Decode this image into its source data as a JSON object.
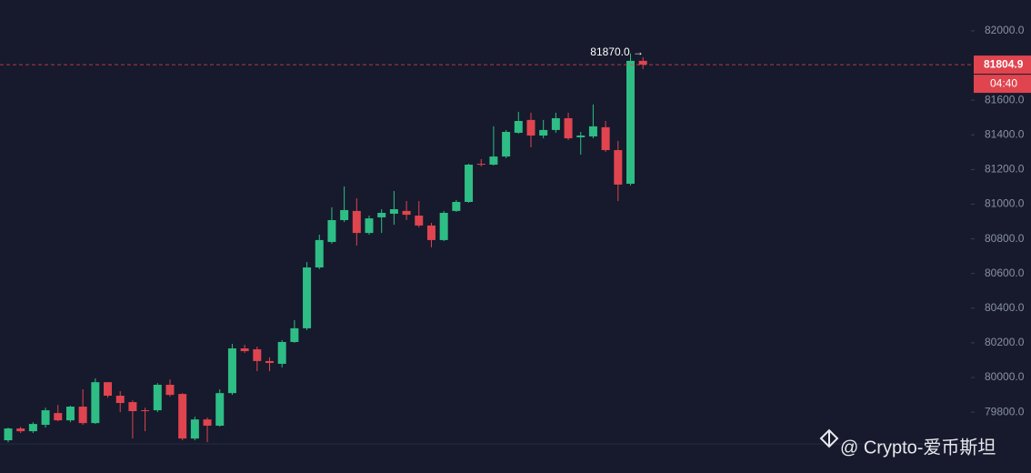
{
  "chart_data": {
    "type": "candlestick",
    "open": [
      79638,
      79706,
      79690,
      79727,
      79795,
      79753,
      79832,
      79737,
      79973,
      79895,
      79858,
      79811,
      79811,
      79958,
      79905,
      79648,
      79758,
      79722,
      79910,
      80168,
      80163,
      80095,
      80079,
      80205,
      80284,
      80635,
      80782,
      80908,
      80961,
      80834,
      80924,
      80945,
      80961,
      80934,
      80877,
      80793,
      80961,
      81013,
      81233,
      81228,
      81275,
      81412,
      81486,
      81396,
      81428,
      81496,
      81386,
      81391,
      81444,
      81312,
      81118,
      81827
    ],
    "high": [
      79711,
      79716,
      79742,
      79826,
      79842,
      79837,
      79932,
      79995,
      79973,
      79921,
      79868,
      79826,
      79968,
      79989,
      79910,
      79774,
      79769,
      79932,
      80194,
      80189,
      80178,
      80116,
      80216,
      80331,
      80666,
      80824,
      80982,
      81102,
      81034,
      80934,
      80971,
      81076,
      81018,
      81018,
      80892,
      80961,
      81024,
      81233,
      81260,
      81449,
      81428,
      81533,
      81528,
      81486,
      81528,
      81528,
      81417,
      81575,
      81480,
      81365,
      81870,
      81848
    ],
    "low": [
      79627,
      79680,
      79680,
      79711,
      79748,
      79742,
      79727,
      79732,
      79884,
      79800,
      79648,
      79690,
      79800,
      79890,
      79638,
      79638,
      79627,
      79716,
      79900,
      80142,
      80037,
      80037,
      80058,
      80200,
      80273,
      80625,
      80772,
      80897,
      80761,
      80824,
      80834,
      80882,
      80908,
      80866,
      80751,
      80787,
      80955,
      81008,
      81218,
      81223,
      81265,
      81407,
      81328,
      81380,
      81412,
      81370,
      81286,
      81380,
      81302,
      81018,
      81108,
      81780
    ],
    "close": [
      79706,
      79690,
      79732,
      79811,
      79753,
      79832,
      79737,
      79973,
      79895,
      79853,
      79806,
      79806,
      79958,
      79900,
      79648,
      79758,
      79722,
      79910,
      80168,
      80152,
      80095,
      80084,
      80205,
      80284,
      80635,
      80793,
      80908,
      80966,
      80834,
      80918,
      80950,
      80971,
      80939,
      80877,
      80793,
      80950,
      81013,
      81228,
      81228,
      81275,
      81417,
      81480,
      81396,
      81428,
      81496,
      81380,
      81396,
      81449,
      81312,
      81113,
      81827,
      81805
    ],
    "ylim": [
      79617,
      82178
    ],
    "yticks": [
      {
        "value": 79800,
        "label": "79800.0"
      },
      {
        "value": 80000,
        "label": "80000.0"
      },
      {
        "value": 80200,
        "label": "80200.0"
      },
      {
        "value": 80400,
        "label": "80400.0"
      },
      {
        "value": 80600,
        "label": "80600.0"
      },
      {
        "value": 80800,
        "label": "80800.0"
      },
      {
        "value": 81000,
        "label": "81000.0"
      },
      {
        "value": 81200,
        "label": "81200.0"
      },
      {
        "value": 81400,
        "label": "81400.0"
      },
      {
        "value": 81600,
        "label": "81600.0"
      },
      {
        "value": 82000,
        "label": "82000.0"
      }
    ],
    "last_price": 81804.9,
    "countdown": "04:40",
    "high_marker": {
      "value": 81870,
      "label": "81870.0 →"
    },
    "up_color": "#2ebd85",
    "down_color": "#e0444f"
  },
  "watermark": "@ Crypto-爱币斯坦"
}
